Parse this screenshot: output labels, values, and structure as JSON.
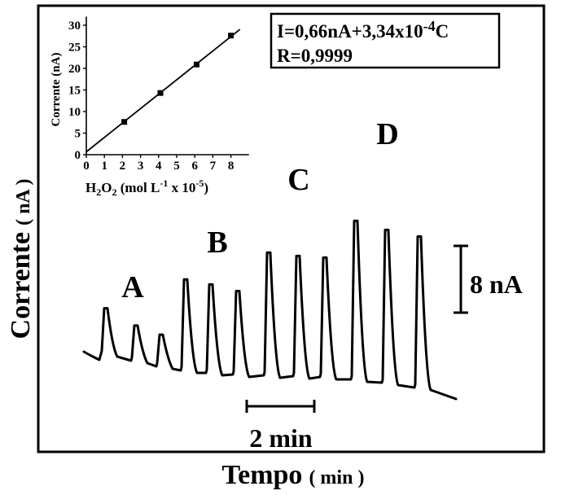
{
  "chart_data": [
    {
      "type": "line",
      "role": "main",
      "xlabel": "Tempo",
      "xlabel_unit": "( min )",
      "ylabel": "Corrente",
      "ylabel_unit": "( nA )",
      "groups": [
        {
          "label": "A",
          "peak_heights_nA": [
            5.5,
            4.2,
            3.8
          ]
        },
        {
          "label": "B",
          "peak_heights_nA": [
            10.9,
            10.6,
            10.0
          ]
        },
        {
          "label": "C",
          "peak_heights_nA": [
            14.7,
            14.4,
            14.3
          ]
        },
        {
          "label": "D",
          "peak_heights_nA": [
            19.0,
            18.3,
            18.1
          ]
        }
      ],
      "scale_bars": {
        "time": "2 min",
        "current": "8 nA"
      },
      "grid": false
    },
    {
      "type": "scatter",
      "role": "inset",
      "x": [
        2.1,
        4.1,
        6.1,
        8.0
      ],
      "y": [
        7.6,
        14.3,
        20.9,
        27.6
      ],
      "fit_line": {
        "intercept": 0.66,
        "slope_per_1e-5M": 3.34,
        "x_range": [
          0,
          8.5
        ]
      },
      "xlim": [
        0,
        9
      ],
      "ylim": [
        0,
        32
      ],
      "xticks": [
        "0",
        "1",
        "2",
        "3",
        "4",
        "5",
        "6",
        "7",
        "8"
      ],
      "yticks": [
        "0",
        "5",
        "10",
        "15",
        "20",
        "25",
        "30"
      ],
      "xlabel": "H2O2 (mol L-1 x 10-5)",
      "ylabel": "Corrente (nA)",
      "grid": false
    }
  ],
  "annotation": {
    "equation_prefix": "I=0,66nA+3,34x10",
    "equation_exponent": "-4",
    "equation_suffix": "C",
    "r_value": "R=0,9999"
  }
}
